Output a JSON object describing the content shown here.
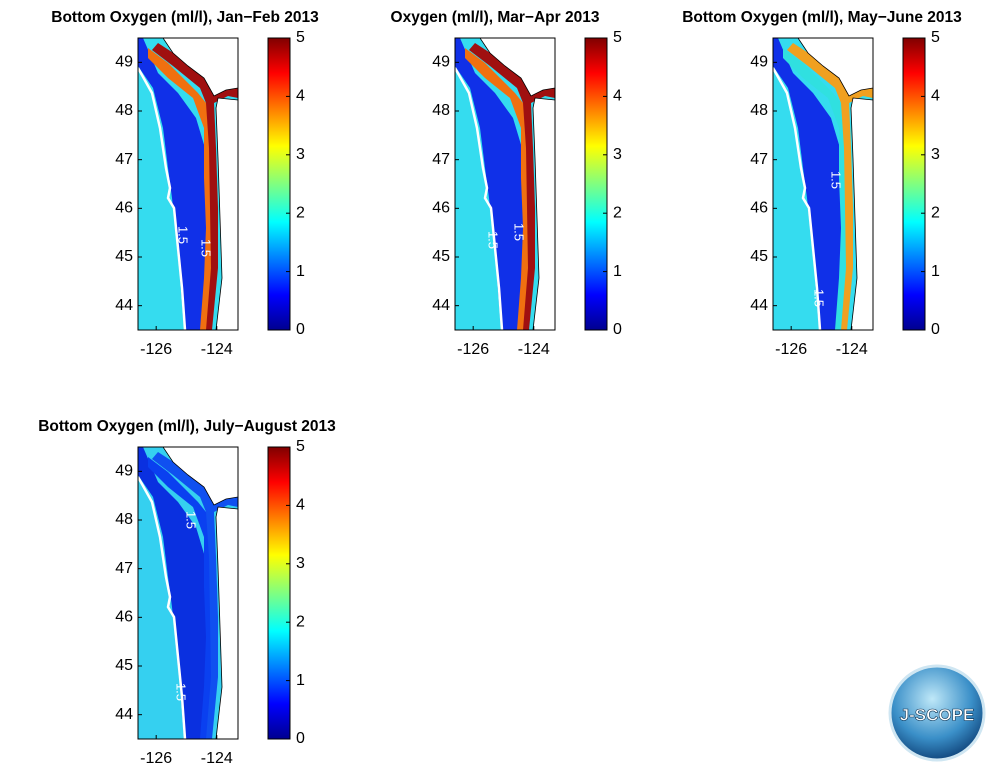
{
  "chart_data": [
    {
      "type": "map",
      "title": "Bottom Oxygen (ml/l), Jan−Feb 2013",
      "xlim": [
        -126.6,
        -123.3
      ],
      "ylim": [
        43.5,
        49.5
      ],
      "xticks": [
        -126,
        -124
      ],
      "yticks": [
        44,
        45,
        46,
        47,
        48,
        49
      ],
      "clim": [
        0,
        5
      ],
      "cticks": [
        0,
        1,
        2,
        3,
        4,
        5
      ],
      "contour_label": "1.5"
    },
    {
      "type": "map",
      "title": "Oxygen (ml/l), Mar−Apr 2013",
      "xlim": [
        -126.6,
        -123.3
      ],
      "ylim": [
        43.5,
        49.5
      ],
      "xticks": [
        -126,
        -124
      ],
      "yticks": [
        44,
        45,
        46,
        47,
        48,
        49
      ],
      "clim": [
        0,
        5
      ],
      "cticks": [
        0,
        1,
        2,
        3,
        4,
        5
      ],
      "contour_label": "1.5"
    },
    {
      "type": "map",
      "title": "Bottom Oxygen (ml/l), May−June 2013",
      "xlim": [
        -126.6,
        -123.3
      ],
      "ylim": [
        43.5,
        49.5
      ],
      "xticks": [
        -126,
        -124
      ],
      "yticks": [
        44,
        45,
        46,
        47,
        48,
        49
      ],
      "clim": [
        0,
        5
      ],
      "cticks": [
        0,
        1,
        2,
        3,
        4,
        5
      ],
      "contour_label": "1.5"
    },
    {
      "type": "map",
      "title": "Bottom Oxygen (ml/l), July−August 2013",
      "xlim": [
        -126.6,
        -123.3
      ],
      "ylim": [
        43.5,
        49.5
      ],
      "xticks": [
        -126,
        -124
      ],
      "yticks": [
        44,
        45,
        46,
        47,
        48,
        49
      ],
      "clim": [
        0,
        5
      ],
      "cticks": [
        0,
        1,
        2,
        3,
        4,
        5
      ],
      "contour_label": "1.5"
    }
  ],
  "logo": "J-SCOPE"
}
